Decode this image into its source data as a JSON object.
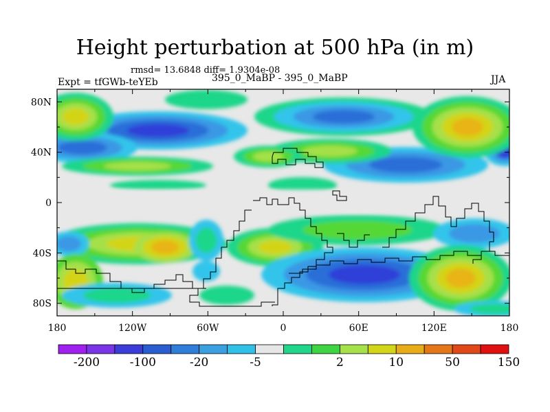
{
  "title": "Height perturbation at 500 hPa (in m)",
  "stats": "rmsd= 13.6848 diff= 1.9304e-08",
  "experiment": "Expt = tfGWb-teYEb",
  "subtitle": "395_0_MaBP - 395_0_MaBP",
  "season": "JJA",
  "map": {
    "lon_range": [
      -180,
      180
    ],
    "lat_range": [
      -90,
      90
    ],
    "x_ticks": [
      {
        "value": -180,
        "label": "180"
      },
      {
        "value": -120,
        "label": "120W"
      },
      {
        "value": -60,
        "label": "60W"
      },
      {
        "value": 0,
        "label": "0"
      },
      {
        "value": 60,
        "label": "60E"
      },
      {
        "value": 120,
        "label": "120E"
      },
      {
        "value": 180,
        "label": "180"
      }
    ],
    "y_ticks": [
      {
        "value": 80,
        "label": "80N"
      },
      {
        "value": 40,
        "label": "40N"
      },
      {
        "value": 0,
        "label": "0"
      },
      {
        "value": -40,
        "label": "40S"
      },
      {
        "value": -80,
        "label": "80S"
      }
    ]
  },
  "colorbar": {
    "colors": [
      "#a020f0",
      "#7a35e6",
      "#3c3cd8",
      "#2a5ed0",
      "#2f7ed8",
      "#3aa0e0",
      "#30c0e8",
      "#e6e6e6",
      "#1fd68a",
      "#3ed444",
      "#a6e04a",
      "#d4d418",
      "#e8ac18",
      "#e47818",
      "#e04818",
      "#e01010"
    ],
    "labels": [
      "-200",
      "-100",
      "-20",
      "-5",
      "2",
      "10",
      "50",
      "150"
    ]
  },
  "field_levels": [
    "#2f40d8",
    "#2a6ed8",
    "#3a98e4",
    "#30c4ea",
    "#1fd68a",
    "#55d836",
    "#a6e04a",
    "#d4d418",
    "#e8b418"
  ]
}
